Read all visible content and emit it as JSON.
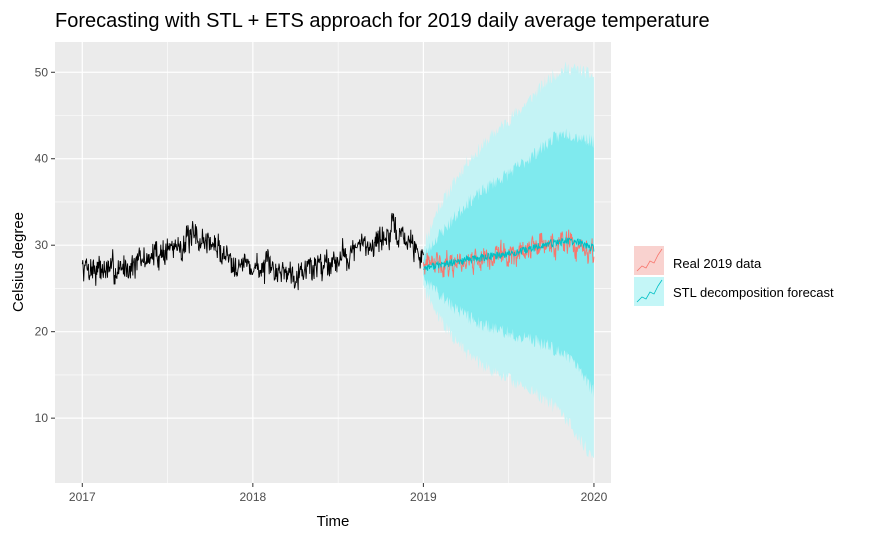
{
  "chart_data": {
    "type": "line",
    "title": "Forecasting with STL + ETS approach for 2019 daily average temperature",
    "xlabel": "Time",
    "ylabel": "Celsius degree",
    "xlim": [
      2016.84,
      2020.1
    ],
    "ylim": [
      2.5,
      53.5
    ],
    "x_ticks": [
      2017,
      2018,
      2019,
      2020
    ],
    "x_tick_labels": [
      "2017",
      "2018",
      "2019",
      "2020"
    ],
    "y_ticks": [
      10,
      20,
      30,
      40,
      50
    ],
    "y_tick_labels": [
      "10",
      "20",
      "30",
      "40",
      "50"
    ],
    "grid": true,
    "legend_position": "right",
    "colors": {
      "panel": "#ebebeb",
      "grid": "#ffffff",
      "history": "#000000",
      "real": "#f8766d",
      "forecast": "#00bfc4",
      "pi80": "#7feaee",
      "pi95": "#c4f3f5",
      "legend_real_fill": "#f9d2cf",
      "legend_forecast_fill": "#c4f6f7"
    },
    "series": [
      {
        "name": "",
        "role": "history",
        "x_start": 2017,
        "x_end": 2019,
        "baseline": [
          27.5,
          27.3,
          27.0,
          27.5,
          28.0,
          28.8,
          29.5,
          30.2,
          30.8,
          30.3,
          29.0,
          28.0,
          27.5,
          27.2,
          27.1,
          27.0,
          27.4,
          28.0,
          28.6,
          29.3,
          30.0,
          30.8,
          31.5,
          30.5,
          28.5
        ],
        "noise": 2.2
      },
      {
        "name": "Real 2019 data",
        "role": "real",
        "x_start": 2019,
        "x_end": 2020,
        "baseline": [
          27.6,
          27.8,
          28.0,
          28.3,
          28.5,
          28.8,
          29.0,
          29.4,
          29.8,
          30.0,
          30.2,
          29.5,
          28.3
        ],
        "noise": 1.9
      },
      {
        "name": "STL decomposition forecast",
        "role": "forecast",
        "x": [
          2019.0,
          2019.083,
          2019.167,
          2019.25,
          2019.333,
          2019.417,
          2019.5,
          2019.583,
          2019.667,
          2019.75,
          2019.833,
          2019.917,
          2020.0
        ],
        "values": [
          27.4,
          27.7,
          27.9,
          28.3,
          28.5,
          28.8,
          29.0,
          29.3,
          29.8,
          30.2,
          30.5,
          30.3,
          29.6
        ],
        "pi80_lower": [
          26.2,
          24.5,
          23.0,
          21.8,
          21.0,
          20.3,
          19.8,
          19.3,
          18.8,
          18.2,
          17.2,
          15.5,
          13.0
        ],
        "pi80_upper": [
          28.6,
          31.0,
          32.8,
          34.8,
          36.0,
          37.3,
          38.3,
          39.5,
          40.8,
          42.2,
          43.0,
          42.5,
          42.0
        ],
        "pi95_lower": [
          25.0,
          21.8,
          19.5,
          17.5,
          16.3,
          15.3,
          14.5,
          13.6,
          12.8,
          11.6,
          10.0,
          7.5,
          5.3
        ],
        "pi95_upper": [
          29.8,
          34.2,
          36.8,
          39.5,
          41.2,
          43.0,
          44.5,
          46.0,
          47.8,
          49.5,
          50.5,
          50.3,
          49.5
        ]
      }
    ],
    "legend": [
      {
        "label": "Real 2019 data",
        "role": "real"
      },
      {
        "label": "STL decomposition forecast",
        "role": "forecast"
      }
    ]
  }
}
